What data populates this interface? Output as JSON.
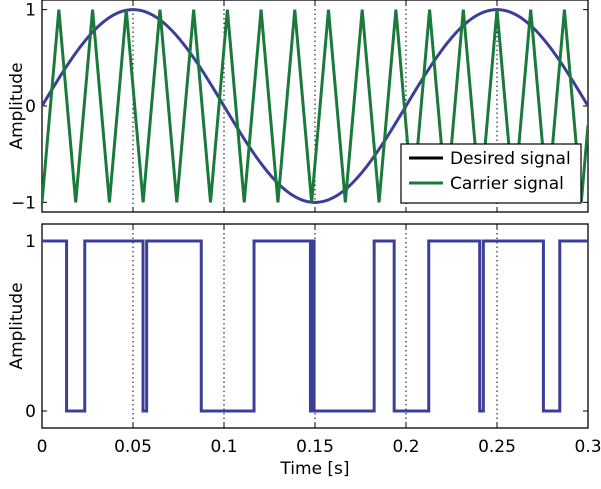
{
  "chart_data": [
    {
      "type": "line",
      "xlabel": "",
      "ylabel": "Amplitude",
      "xlim": [
        0,
        0.3
      ],
      "ylim": [
        -1.1,
        1.1
      ],
      "x_ticks": [
        0,
        0.05,
        0.1,
        0.15,
        0.2,
        0.25,
        0.3
      ],
      "x_tick_labels": [],
      "y_ticks": [
        -1,
        0,
        1
      ],
      "y_tick_labels": [
        "−1",
        "0",
        "1"
      ],
      "grid": "vertical dotted lines at x ticks",
      "legend": {
        "placement": "bottom-right",
        "entries": [
          {
            "label": "Desired signal",
            "color": "#000000"
          },
          {
            "label": "Carrier signal",
            "color": "#1a7a3c"
          }
        ]
      },
      "series": [
        {
          "color": "#3b3f99",
          "kind": "sine",
          "points": [
            [
              0,
              0
            ],
            [
              0.01,
              0.31
            ],
            [
              0.02,
              0.59
            ],
            [
              0.03,
              0.81
            ],
            [
              0.04,
              0.95
            ],
            [
              0.05,
              1
            ],
            [
              0.06,
              0.95
            ],
            [
              0.07,
              0.81
            ],
            [
              0.08,
              0.59
            ],
            [
              0.09,
              0.31
            ],
            [
              0.1,
              0
            ],
            [
              0.11,
              -0.31
            ],
            [
              0.12,
              -0.59
            ],
            [
              0.13,
              -0.81
            ],
            [
              0.14,
              -0.95
            ],
            [
              0.15,
              -1
            ],
            [
              0.16,
              -0.95
            ],
            [
              0.17,
              -0.81
            ],
            [
              0.18,
              -0.59
            ],
            [
              0.19,
              -0.31
            ],
            [
              0.2,
              0
            ],
            [
              0.21,
              0.31
            ],
            [
              0.22,
              0.59
            ],
            [
              0.23,
              0.81
            ],
            [
              0.24,
              0.95
            ],
            [
              0.25,
              1
            ],
            [
              0.26,
              0.95
            ],
            [
              0.27,
              0.81
            ],
            [
              0.28,
              0.59
            ],
            [
              0.29,
              0.31
            ],
            [
              0.3,
              0
            ]
          ]
        },
        {
          "color": "#1a7a3c",
          "kind": "triangle",
          "points": [
            [
              0,
              -1
            ],
            [
              0.00926,
              1
            ],
            [
              0.01852,
              -1
            ],
            [
              0.02778,
              1
            ],
            [
              0.03704,
              -1
            ],
            [
              0.0463,
              1
            ],
            [
              0.05556,
              -1
            ],
            [
              0.06481,
              1
            ],
            [
              0.07407,
              -1
            ],
            [
              0.08333,
              1
            ],
            [
              0.09259,
              -1
            ],
            [
              0.10185,
              1
            ],
            [
              0.11111,
              -1
            ],
            [
              0.12037,
              1
            ],
            [
              0.12963,
              -1
            ],
            [
              0.13889,
              1
            ],
            [
              0.14815,
              -1
            ],
            [
              0.15741,
              1
            ],
            [
              0.16667,
              -1
            ],
            [
              0.17593,
              1
            ],
            [
              0.18519,
              -1
            ],
            [
              0.19444,
              1
            ],
            [
              0.2037,
              -1
            ],
            [
              0.21296,
              1
            ],
            [
              0.22222,
              -1
            ],
            [
              0.23148,
              1
            ],
            [
              0.24074,
              -1
            ],
            [
              0.25,
              1
            ],
            [
              0.25926,
              -1
            ],
            [
              0.26852,
              1
            ],
            [
              0.27778,
              -1
            ],
            [
              0.28704,
              1
            ],
            [
              0.2963,
              -1
            ],
            [
              0.3,
              -0.2
            ]
          ]
        }
      ]
    },
    {
      "type": "line",
      "xlabel": "Time [s]",
      "ylabel": "Amplitude",
      "xlim": [
        0,
        0.3
      ],
      "ylim": [
        -0.1,
        1.1
      ],
      "x_ticks": [
        0,
        0.05,
        0.1,
        0.15,
        0.2,
        0.25,
        0.3
      ],
      "x_tick_labels": [
        "0",
        "0.05",
        "0.1",
        "0.15",
        "0.2",
        "0.25",
        "0.3"
      ],
      "y_ticks": [
        0,
        1
      ],
      "y_tick_labels": [
        "0",
        "1"
      ],
      "grid": "vertical dotted lines at x ticks",
      "series": [
        {
          "color": "#3b3f99",
          "kind": "pwm-step",
          "points": [
            [
              0,
              1
            ],
            [
              0.0135,
              1
            ],
            [
              0.0135,
              0
            ],
            [
              0.0235,
              0
            ],
            [
              0.0235,
              1
            ],
            [
              0.0555,
              1
            ],
            [
              0.0555,
              0
            ],
            [
              0.0575,
              0
            ],
            [
              0.0575,
              1
            ],
            [
              0.0875,
              1
            ],
            [
              0.0875,
              0
            ],
            [
              0.1165,
              0
            ],
            [
              0.1165,
              1
            ],
            [
              0.1475,
              1
            ],
            [
              0.1475,
              0
            ],
            [
              0.1485,
              0
            ],
            [
              0.1485,
              1
            ],
            [
              0.1495,
              1
            ],
            [
              0.1495,
              0
            ],
            [
              0.1825,
              0
            ],
            [
              0.1825,
              1
            ],
            [
              0.1935,
              1
            ],
            [
              0.1935,
              0
            ],
            [
              0.2125,
              0
            ],
            [
              0.2125,
              1
            ],
            [
              0.2405,
              1
            ],
            [
              0.2405,
              0
            ],
            [
              0.2425,
              0
            ],
            [
              0.2425,
              1
            ],
            [
              0.2755,
              1
            ],
            [
              0.2755,
              0
            ],
            [
              0.2845,
              0
            ],
            [
              0.2845,
              1
            ],
            [
              0.3,
              1
            ]
          ]
        }
      ]
    }
  ]
}
